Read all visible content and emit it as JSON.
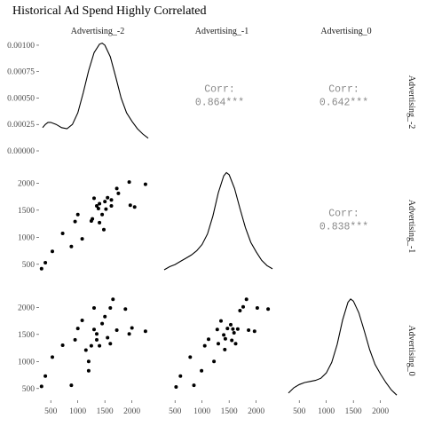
{
  "chart_data": {
    "type": "scatter",
    "title": "Historical Ad Spend Highly Correlated",
    "variables": [
      "Advertising_-2",
      "Advertising_-1",
      "Advertising_0"
    ],
    "panel_layout": "scatterplot matrix: density on diagonal, scatter in lower triangle, correlation in upper triangle",
    "axis_range": [
      300,
      2350
    ],
    "ticks": [
      500,
      1000,
      1500,
      2000
    ],
    "density_ylim": [
      0,
      0.00105
    ],
    "density_ticks": [
      "0.00000",
      "0.00025",
      "0.00050",
      "0.00075",
      "0.00100"
    ],
    "correlations": [
      {
        "row": 0,
        "col": 1,
        "label": "Corr:",
        "value": "0.864***"
      },
      {
        "row": 0,
        "col": 2,
        "label": "Corr:",
        "value": "0.642***"
      },
      {
        "row": 1,
        "col": 2,
        "label": "Corr:",
        "value": "0.838***"
      }
    ],
    "densities": [
      {
        "variable": "Advertising_-2",
        "points": [
          [
            350,
            0.00022
          ],
          [
            400,
            0.00025
          ],
          [
            450,
            0.00027
          ],
          [
            500,
            0.00027
          ],
          [
            600,
            0.00025
          ],
          [
            700,
            0.00022
          ],
          [
            800,
            0.00021
          ],
          [
            900,
            0.00025
          ],
          [
            1000,
            0.00036
          ],
          [
            1100,
            0.00055
          ],
          [
            1200,
            0.00076
          ],
          [
            1300,
            0.00093
          ],
          [
            1400,
            0.00101
          ],
          [
            1450,
            0.00102
          ],
          [
            1500,
            0.001
          ],
          [
            1600,
            0.00089
          ],
          [
            1700,
            0.0007
          ],
          [
            1800,
            0.0005
          ],
          [
            1900,
            0.00036
          ],
          [
            2000,
            0.00028
          ],
          [
            2100,
            0.00021
          ],
          [
            2200,
            0.00016
          ],
          [
            2300,
            0.00012
          ]
        ]
      },
      {
        "variable": "Advertising_-1",
        "points": [
          [
            300,
            5e-05
          ],
          [
            400,
            8e-05
          ],
          [
            500,
            0.0001
          ],
          [
            600,
            0.00013
          ],
          [
            700,
            0.00016
          ],
          [
            800,
            0.00019
          ],
          [
            900,
            0.00023
          ],
          [
            1000,
            0.00029
          ],
          [
            1100,
            0.00039
          ],
          [
            1200,
            0.00056
          ],
          [
            1300,
            0.00078
          ],
          [
            1400,
            0.00094
          ],
          [
            1450,
            0.00097
          ],
          [
            1500,
            0.00095
          ],
          [
            1600,
            0.00082
          ],
          [
            1700,
            0.00063
          ],
          [
            1800,
            0.00045
          ],
          [
            1900,
            0.00031
          ],
          [
            2000,
            0.00022
          ],
          [
            2100,
            0.00014
          ],
          [
            2200,
            9e-05
          ],
          [
            2300,
            6e-05
          ]
        ]
      },
      {
        "variable": "Advertising_0",
        "points": [
          [
            300,
            6e-05
          ],
          [
            400,
            0.00011
          ],
          [
            500,
            0.00014
          ],
          [
            600,
            0.00016
          ],
          [
            700,
            0.00017
          ],
          [
            800,
            0.00018
          ],
          [
            900,
            0.0002
          ],
          [
            1000,
            0.00025
          ],
          [
            1100,
            0.00035
          ],
          [
            1200,
            0.00052
          ],
          [
            1300,
            0.00075
          ],
          [
            1400,
            0.00092
          ],
          [
            1450,
            0.00095
          ],
          [
            1500,
            0.00093
          ],
          [
            1600,
            0.00082
          ],
          [
            1700,
            0.00065
          ],
          [
            1800,
            0.00047
          ],
          [
            1900,
            0.00033
          ],
          [
            2000,
            0.00024
          ],
          [
            2100,
            0.00016
          ],
          [
            2200,
            9e-05
          ],
          [
            2300,
            4e-05
          ]
        ]
      }
    ],
    "scatter": [
      {
        "x_variable": "Advertising_-2",
        "y_variable": "Advertising_-1",
        "points": [
          [
            330,
            420
          ],
          [
            400,
            530
          ],
          [
            530,
            740
          ],
          [
            720,
            1070
          ],
          [
            880,
            830
          ],
          [
            950,
            1290
          ],
          [
            1000,
            1420
          ],
          [
            1080,
            970
          ],
          [
            1250,
            1300
          ],
          [
            1270,
            1340
          ],
          [
            1300,
            1720
          ],
          [
            1350,
            1580
          ],
          [
            1400,
            1620
          ],
          [
            1400,
            1270
          ],
          [
            1450,
            1420
          ],
          [
            1480,
            1140
          ],
          [
            1520,
            1520
          ],
          [
            1550,
            1730
          ],
          [
            1620,
            1690
          ],
          [
            1720,
            1900
          ],
          [
            1750,
            1810
          ],
          [
            1950,
            2020
          ],
          [
            1970,
            1590
          ],
          [
            2050,
            1560
          ],
          [
            2250,
            1980
          ],
          [
            1500,
            1660
          ],
          [
            1380,
            1530
          ],
          [
            1620,
            1580
          ]
        ]
      },
      {
        "x_variable": "Advertising_-2",
        "y_variable": "Advertising_0",
        "points": [
          [
            330,
            540
          ],
          [
            400,
            730
          ],
          [
            530,
            1080
          ],
          [
            720,
            1300
          ],
          [
            880,
            560
          ],
          [
            950,
            1400
          ],
          [
            1000,
            1610
          ],
          [
            1080,
            1760
          ],
          [
            1200,
            830
          ],
          [
            1200,
            1000
          ],
          [
            1250,
            1290
          ],
          [
            1300,
            1590
          ],
          [
            1300,
            1990
          ],
          [
            1350,
            1510
          ],
          [
            1350,
            1400
          ],
          [
            1400,
            1290
          ],
          [
            1450,
            1700
          ],
          [
            1500,
            1830
          ],
          [
            1550,
            1440
          ],
          [
            1600,
            1330
          ],
          [
            1600,
            1990
          ],
          [
            1650,
            2150
          ],
          [
            1720,
            1580
          ],
          [
            1880,
            1970
          ],
          [
            1950,
            1510
          ],
          [
            2000,
            1620
          ],
          [
            2250,
            1560
          ],
          [
            1150,
            1210
          ]
        ]
      },
      {
        "x_variable": "Advertising_-1",
        "y_variable": "Advertising_0",
        "points": [
          [
            520,
            530
          ],
          [
            600,
            730
          ],
          [
            780,
            1080
          ],
          [
            850,
            560
          ],
          [
            990,
            830
          ],
          [
            1050,
            1290
          ],
          [
            1120,
            1410
          ],
          [
            1220,
            1000
          ],
          [
            1280,
            1590
          ],
          [
            1300,
            1330
          ],
          [
            1350,
            1750
          ],
          [
            1400,
            1490
          ],
          [
            1420,
            1220
          ],
          [
            1470,
            1610
          ],
          [
            1530,
            1680
          ],
          [
            1550,
            1390
          ],
          [
            1590,
            1530
          ],
          [
            1620,
            1330
          ],
          [
            1660,
            1600
          ],
          [
            1700,
            1940
          ],
          [
            1760,
            2010
          ],
          [
            1820,
            2150
          ],
          [
            1860,
            1580
          ],
          [
            1970,
            1560
          ],
          [
            2020,
            1990
          ],
          [
            2220,
            1970
          ],
          [
            1430,
            1420
          ],
          [
            1570,
            1600
          ]
        ]
      }
    ]
  }
}
